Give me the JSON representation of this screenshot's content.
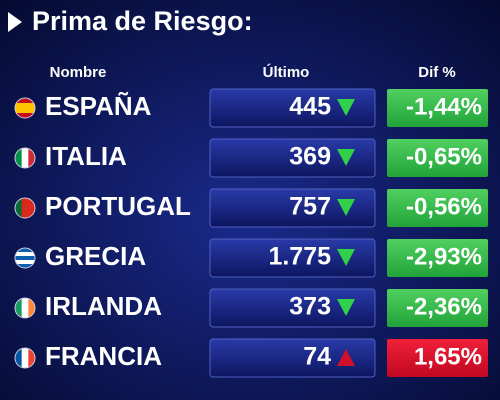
{
  "header": {
    "title": "Prima de Riesgo:"
  },
  "table": {
    "columns": [
      "Nombre",
      "Último",
      "Dif %"
    ],
    "rows": [
      [
        "ESPAÑA",
        "445",
        "-1,44%"
      ],
      [
        "ITALIA",
        "369",
        "-0,65%"
      ],
      [
        "PORTUGAL",
        "757",
        "-0,56%"
      ],
      [
        "GRECIA",
        "1.775",
        "-2,93%"
      ],
      [
        "IRLANDA",
        "373",
        "-2,36%"
      ],
      [
        "FRANCIA",
        "74",
        "1,65%"
      ]
    ]
  }
}
